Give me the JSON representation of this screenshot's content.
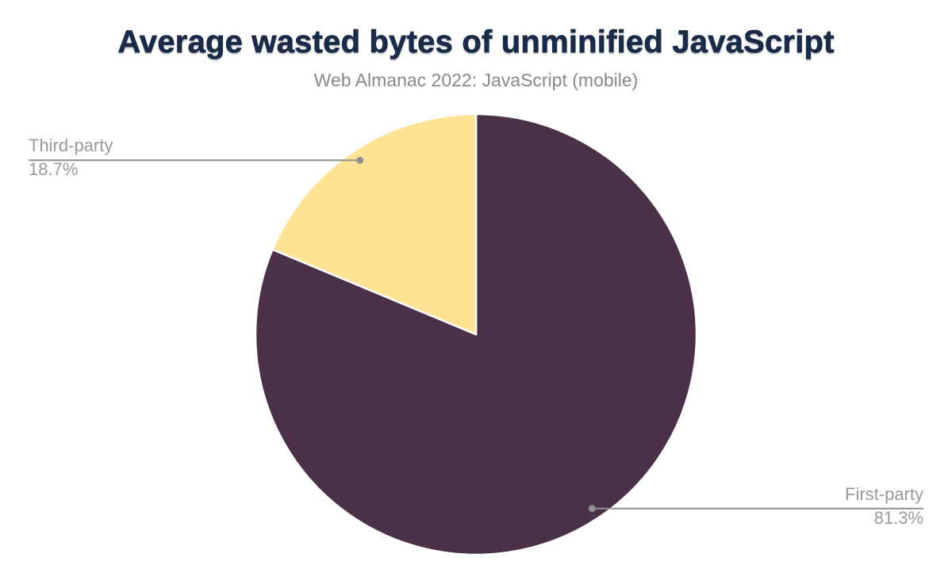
{
  "chart_data": {
    "type": "pie",
    "title": "Average wasted bytes of unminified JavaScript",
    "subtitle": "Web Almanac 2022: JavaScript (mobile)",
    "unit": "percent",
    "start_angle": "top",
    "direction": "clockwise",
    "legend": "none",
    "slices": [
      {
        "label": "First-party",
        "value": 81.3,
        "display": "81.3%",
        "color": "#4a3148"
      },
      {
        "label": "Third-party",
        "value": 18.7,
        "display": "18.7%",
        "color": "#ffe294"
      }
    ],
    "label_style": {
      "text_color": "#9a9a9a",
      "leader_line_color": "#8f8f8f",
      "dot_color": "#8f8f8f"
    }
  },
  "colors": {
    "background": "#ffffff",
    "title": "#1a2b49",
    "subtitle": "#888888",
    "slice_divider": "#ffffff"
  }
}
